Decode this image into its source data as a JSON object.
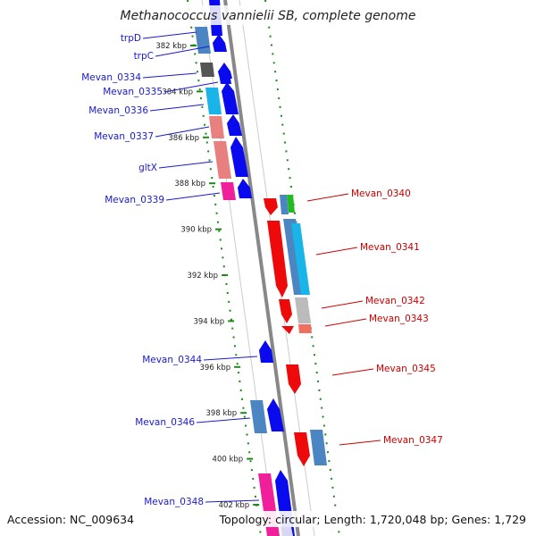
{
  "title": "Methanococcus vannielii SB, complete genome",
  "footer": {
    "accession": "Accession: NC_009634",
    "summary": "Topology: circular; Length: 1,720,048 bp; Genes: 1,729"
  },
  "colors": {
    "reverse_strand": "#0a0aee",
    "forward_strand": "#ee0a0a",
    "label_left": "#1a1acc",
    "label_right": "#cc0000",
    "tick_green": "#1a8a1a",
    "backbone": "#888888"
  },
  "ticks": [
    {
      "kbp": 382,
      "label": "382 kbp"
    },
    {
      "kbp": 384,
      "label": "384 kbp"
    },
    {
      "kbp": 386,
      "label": "386 kbp"
    },
    {
      "kbp": 388,
      "label": "388 kbp"
    },
    {
      "kbp": 390,
      "label": "390 kbp"
    },
    {
      "kbp": 392,
      "label": "392 kbp"
    },
    {
      "kbp": 394,
      "label": "394 kbp"
    },
    {
      "kbp": 396,
      "label": "396 kbp"
    },
    {
      "kbp": 398,
      "label": "398 kbp"
    },
    {
      "kbp": 400,
      "label": "400 kbp"
    },
    {
      "kbp": 402,
      "label": "402 kbp"
    }
  ],
  "left_genes": [
    {
      "name": "trpD",
      "strand": "reverse"
    },
    {
      "name": "trpC",
      "strand": "reverse"
    },
    {
      "name": "Mevan_0334",
      "strand": "reverse"
    },
    {
      "name": "Mevan_0335",
      "strand": "reverse"
    },
    {
      "name": "Mevan_0336",
      "strand": "reverse"
    },
    {
      "name": "Mevan_0337",
      "strand": "reverse"
    },
    {
      "name": "gltX",
      "strand": "reverse"
    },
    {
      "name": "Mevan_0339",
      "strand": "reverse"
    },
    {
      "name": "Mevan_0344",
      "strand": "reverse"
    },
    {
      "name": "Mevan_0346",
      "strand": "reverse"
    },
    {
      "name": "Mevan_0348",
      "strand": "reverse"
    }
  ],
  "right_genes": [
    {
      "name": "Mevan_0340",
      "strand": "forward"
    },
    {
      "name": "Mevan_0341",
      "strand": "forward"
    },
    {
      "name": "Mevan_0342",
      "strand": "forward"
    },
    {
      "name": "Mevan_0343",
      "strand": "forward"
    },
    {
      "name": "Mevan_0345",
      "strand": "forward"
    },
    {
      "name": "Mevan_0347",
      "strand": "forward"
    }
  ]
}
